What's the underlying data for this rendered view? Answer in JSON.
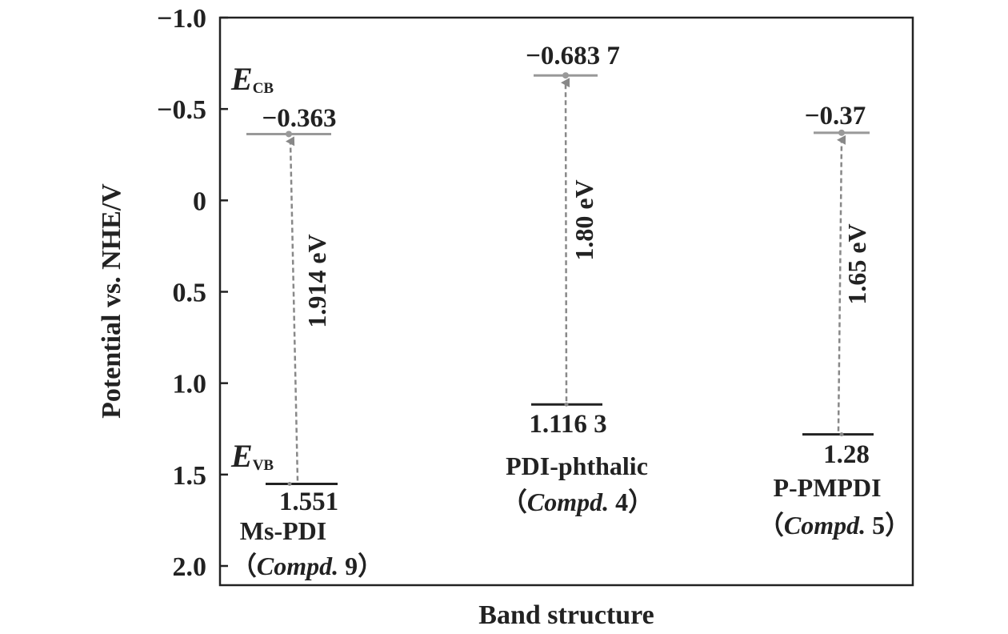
{
  "chart_data": {
    "type": "band-diagram",
    "xlabel": "Band structure",
    "ylabel": "Potential vs. NHE/V",
    "ylim": [
      -1.0,
      2.0
    ],
    "y_inverted": true,
    "yticks": [
      "−1.0",
      "−0.5",
      "0",
      "0.5",
      "1.0",
      "1.5",
      "2.0"
    ],
    "ytick_values": [
      -1.0,
      -0.5,
      0,
      0.5,
      1.0,
      1.5,
      2.0
    ],
    "band_labels": {
      "cb_main": "E",
      "cb_sub": "CB",
      "vb_main": "E",
      "vb_sub": "VB"
    },
    "compounds": [
      {
        "name": "Ms-PDI",
        "compd_word": "Compd.",
        "compd_num": "9",
        "cb": -0.363,
        "vb": 1.551,
        "cb_label": "−0.363",
        "vb_label": "1.551",
        "gap_label": "1.914 eV"
      },
      {
        "name": "PDI-phthalic",
        "compd_word": "Compd.",
        "compd_num": "4",
        "cb": -0.6837,
        "vb": 1.1163,
        "cb_label": "−0.683 7",
        "vb_label": "1.116 3",
        "gap_label": "1.80 eV"
      },
      {
        "name": "P-PMPDI",
        "compd_word": "Compd.",
        "compd_num": "5",
        "cb": -0.37,
        "vb": 1.28,
        "cb_label": "−0.37",
        "vb_label": "1.28",
        "gap_label": "1.65 eV"
      }
    ],
    "colors": {
      "cb_line": "#999999",
      "vb_line": "#222222",
      "arrow": "#888888",
      "axis": "#222222"
    }
  }
}
